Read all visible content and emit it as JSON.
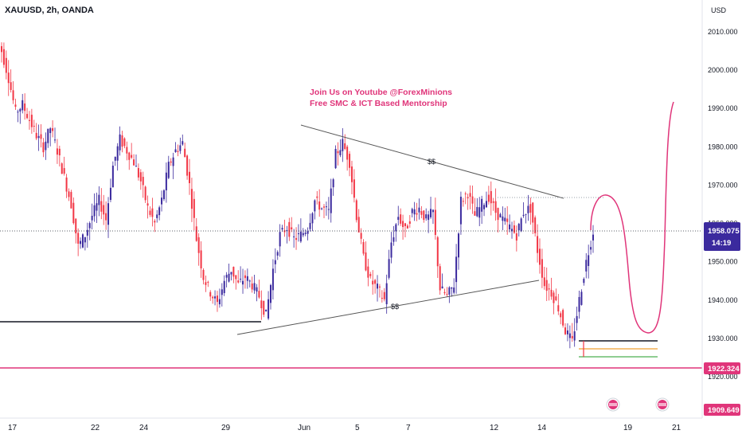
{
  "header": {
    "symbol": "XAUUSD, 2h, OANDA",
    "currency": "USD"
  },
  "annotations": {
    "line1": "Join Us on Youtube @ForexMinions",
    "line2": "Free SMC & ICT Based Mentorship",
    "liquidity_upper": "$$",
    "liquidity_lower": "$$"
  },
  "price_badges": {
    "current_price": "1958.075",
    "countdown": "14:19",
    "level_red": "1922.324",
    "level_bottom": "1909.649"
  },
  "colors": {
    "up": "#3b2a9e",
    "down": "#f23645",
    "projection": "#e0357a",
    "badge_current": "#3b2a9e",
    "badge_level": "#e0357a"
  },
  "chart_data": {
    "type": "candlestick",
    "title": "XAUUSD, 2h, OANDA",
    "ylabel": "USD",
    "ylim": [
      1906,
      2014
    ],
    "y_ticks": [
      2010,
      2000,
      1990,
      1980,
      1970,
      1960,
      1950,
      1940,
      1930,
      1920
    ],
    "y_tick_labels": [
      "2010.000",
      "2000.000",
      "1990.000",
      "1980.000",
      "1970.000",
      "1960.000",
      "1950.000",
      "1940.000",
      "1930.000",
      "1920.000"
    ],
    "x_tick_labels": [
      "17",
      "22",
      "24",
      "29",
      "Jun",
      "5",
      "7",
      "12",
      "14",
      "19",
      "21"
    ],
    "close_series": [
      2005,
      1998,
      1989,
      1991,
      1987,
      1983,
      1980,
      1985,
      1979,
      1972,
      1965,
      1954,
      1957,
      1962,
      1966,
      1961,
      1975,
      1982,
      1979,
      1976,
      1971,
      1964,
      1960,
      1966,
      1975,
      1979,
      1981,
      1970,
      1956,
      1946,
      1942,
      1939,
      1945,
      1948,
      1944,
      1946,
      1944,
      1941,
      1936,
      1948,
      1957,
      1959,
      1956,
      1957,
      1959,
      1966,
      1964,
      1963,
      1978,
      1981,
      1976,
      1962,
      1951,
      1945,
      1943,
      1940,
      1955,
      1962,
      1958,
      1963,
      1964,
      1961,
      1963,
      1943,
      1941,
      1944,
      1966,
      1968,
      1962,
      1965,
      1967,
      1963,
      1961,
      1959,
      1957,
      1963,
      1964,
      1953,
      1944,
      1942,
      1938,
      1932,
      1929,
      1940,
      1950,
      1958
    ],
    "current_price": 1958.075,
    "horizontal_levels": [
      {
        "value": 1934.0,
        "label": ""
      },
      {
        "value": 1922.324,
        "label": "1922.324"
      },
      {
        "value": 1929.0,
        "label": ""
      },
      {
        "value": 1927.2,
        "label": ""
      },
      {
        "value": 1925.0,
        "label": ""
      },
      {
        "value": 1967.0,
        "label": ""
      }
    ],
    "projection_path": [
      1958.0,
      1966.0,
      1962.0,
      1945.0,
      1933.0,
      1935.0,
      1960.0,
      1991.0
    ],
    "grid": false,
    "legend": "none"
  }
}
